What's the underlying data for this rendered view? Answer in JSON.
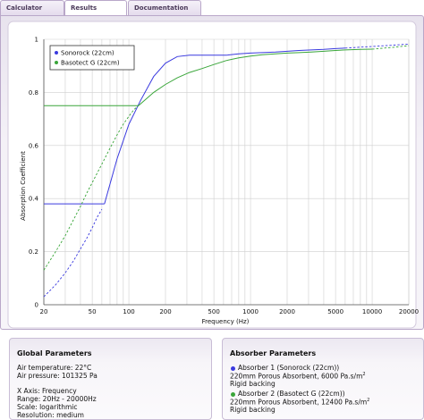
{
  "tabs": [
    {
      "label": "Calculator",
      "active": false
    },
    {
      "label": "Results",
      "active": true
    },
    {
      "label": "Documentation",
      "active": false
    }
  ],
  "chart_data": {
    "type": "line",
    "title": "",
    "xlabel": "Frequency (Hz)",
    "ylabel": "Absorption Coefficient",
    "x_scale": "log",
    "xlim": [
      20,
      20000
    ],
    "ylim": [
      0,
      1
    ],
    "x_ticks": [
      "20",
      "50",
      "100",
      "200",
      "500",
      "1000",
      "2000",
      "5000",
      "10000",
      "20000"
    ],
    "y_ticks": [
      "0",
      "0.2",
      "0.4",
      "0.6",
      "0.8",
      "1"
    ],
    "grid": true,
    "legend_position": "top-left",
    "series": [
      {
        "name": "Sonorock (22cm)",
        "color": "#3a3adf",
        "extrapolated_low": {
          "x": [
            20,
            25,
            30,
            35,
            40,
            45,
            50,
            55,
            60
          ],
          "y": [
            0.03,
            0.075,
            0.12,
            0.165,
            0.21,
            0.25,
            0.29,
            0.33,
            0.36
          ]
        },
        "flat_low": {
          "x": [
            20,
            63
          ],
          "y": [
            0.38,
            0.38
          ]
        },
        "measured": {
          "x": [
            63,
            80,
            100,
            125,
            160,
            200,
            250,
            315,
            400,
            500,
            630,
            800,
            1000,
            1250,
            1600,
            2000,
            2500,
            3150,
            4000,
            5000,
            6000
          ],
          "y": [
            0.38,
            0.55,
            0.68,
            0.77,
            0.86,
            0.91,
            0.935,
            0.94,
            0.94,
            0.94,
            0.94,
            0.945,
            0.948,
            0.95,
            0.952,
            0.955,
            0.958,
            0.96,
            0.962,
            0.965,
            0.967
          ]
        },
        "extrapolated_high": {
          "x": [
            6000,
            10000,
            15000,
            20000
          ],
          "y": [
            0.967,
            0.973,
            0.978,
            0.982
          ]
        }
      },
      {
        "name": "Basotect G (22cm)",
        "color": "#3aa63a",
        "extrapolated_low": {
          "x": [
            20,
            25,
            30,
            35,
            40,
            45,
            50,
            60,
            70,
            80,
            90,
            100,
            110,
            120
          ],
          "y": [
            0.13,
            0.2,
            0.26,
            0.32,
            0.37,
            0.42,
            0.46,
            0.53,
            0.59,
            0.64,
            0.68,
            0.71,
            0.735,
            0.75
          ]
        },
        "flat_low": {
          "x": [
            20,
            120
          ],
          "y": [
            0.75,
            0.75
          ]
        },
        "measured": {
          "x": [
            120,
            160,
            200,
            250,
            315,
            400,
            500,
            630,
            800,
            1000,
            1250,
            1600,
            2000,
            2500,
            3150,
            4000,
            5000,
            6000,
            8000,
            10000
          ],
          "y": [
            0.75,
            0.8,
            0.83,
            0.855,
            0.875,
            0.89,
            0.905,
            0.92,
            0.93,
            0.937,
            0.942,
            0.945,
            0.948,
            0.95,
            0.952,
            0.955,
            0.958,
            0.96,
            0.962,
            0.963
          ]
        },
        "extrapolated_high": {
          "x": [
            10000,
            15000,
            20000
          ],
          "y": [
            0.963,
            0.97,
            0.976
          ]
        }
      }
    ]
  },
  "global_params": {
    "title": "Global Parameters",
    "air_temperature": "Air temperature: 22°C",
    "air_pressure": "Air pressure: 101325 Pa",
    "x_axis": "X Axis: Frequency",
    "range": "Range: 20Hz - 20000Hz",
    "scale": "Scale: logarithmic",
    "resolution": "Resolution: medium"
  },
  "absorber_params": {
    "title": "Absorber Parameters",
    "absorbers": [
      {
        "heading": "Absorber 1 (Sonorock (22cm))",
        "description": "220mm Porous Absorbent, 6000 Pa.s/m",
        "description_sup": "2",
        "backing": "Rigid backing",
        "color": "#3a3adf"
      },
      {
        "heading": "Absorber 2 (Basotect G (22cm))",
        "description": "220mm Porous Absorbent, 12400 Pa.s/m",
        "description_sup": "2",
        "backing": "Rigid backing",
        "color": "#3aa63a"
      }
    ]
  }
}
